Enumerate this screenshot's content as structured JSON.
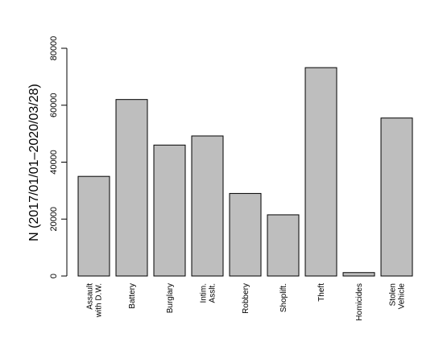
{
  "chart_data": {
    "type": "bar",
    "title": "",
    "xlabel": "",
    "ylabel": "N (2017/01/01–2020/03/28)",
    "ylim": [
      0,
      80000
    ],
    "yticks": [
      0,
      20000,
      40000,
      60000,
      80000
    ],
    "ytick_labels": [
      "0",
      "20000",
      "40000",
      "60000",
      "80000"
    ],
    "categories": [
      [
        "Assault",
        "with D.W."
      ],
      [
        "Battery"
      ],
      [
        "Burglary"
      ],
      [
        "Intim.",
        "Asslt."
      ],
      [
        "Robbery"
      ],
      [
        "Shoplift."
      ],
      [
        "Theft"
      ],
      [
        "Homicides"
      ],
      [
        "Stolen",
        "Vehicle"
      ]
    ],
    "values": [
      35000,
      62000,
      46000,
      49200,
      29000,
      21500,
      73200,
      1200,
      55500
    ],
    "bar_color": "#bebebe",
    "edge_color": "#000000",
    "grid": false,
    "legend": "none"
  }
}
